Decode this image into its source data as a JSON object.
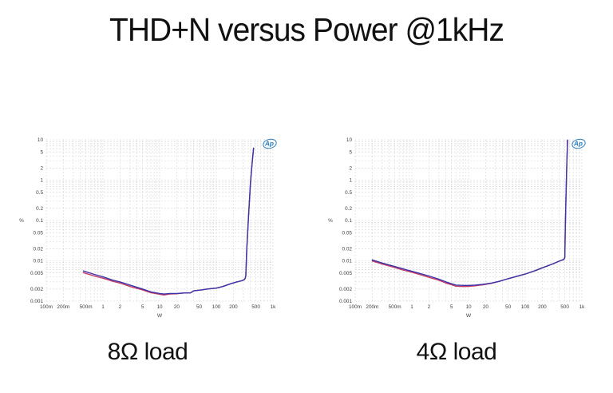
{
  "page": {
    "title": "THD+N versus Power @1kHz",
    "background": "#ffffff"
  },
  "style": {
    "grid_color": "#cdcdcd",
    "tick_color": "#3f3f3f",
    "logo_color": "#2a7fc0",
    "series_blue": "#3b32a8",
    "series_red": "#c43a64"
  },
  "chart_data": [
    {
      "type": "line",
      "caption": "8Ω load",
      "xlabel": "W",
      "ylabel": "%",
      "xscale": "log",
      "yscale": "log",
      "xlim": [
        0.1,
        1000
      ],
      "ylim": [
        0.001,
        10
      ],
      "grid": true,
      "watermark": "Ap",
      "x_ticks": [
        {
          "v": 0.1,
          "t": "100m"
        },
        {
          "v": 0.2,
          "t": "200m"
        },
        {
          "v": 0.5,
          "t": "500m"
        },
        {
          "v": 1,
          "t": "1"
        },
        {
          "v": 2,
          "t": "2"
        },
        {
          "v": 5,
          "t": "5"
        },
        {
          "v": 10,
          "t": "10"
        },
        {
          "v": 20,
          "t": "20"
        },
        {
          "v": 50,
          "t": "50"
        },
        {
          "v": 100,
          "t": "100"
        },
        {
          "v": 200,
          "t": "200"
        },
        {
          "v": 500,
          "t": "500"
        },
        {
          "v": 1000,
          "t": "1k"
        }
      ],
      "y_ticks": [
        {
          "v": 10,
          "t": "10"
        },
        {
          "v": 5,
          "t": "5"
        },
        {
          "v": 2,
          "t": "2"
        },
        {
          "v": 1,
          "t": "1"
        },
        {
          "v": 0.5,
          "t": "0.5"
        },
        {
          "v": 0.2,
          "t": "0.2"
        },
        {
          "v": 0.1,
          "t": "0.1"
        },
        {
          "v": 0.05,
          "t": "0.05"
        },
        {
          "v": 0.02,
          "t": "0.02"
        },
        {
          "v": 0.01,
          "t": "0.01"
        },
        {
          "v": 0.005,
          "t": "0.005"
        },
        {
          "v": 0.002,
          "t": "0.002"
        },
        {
          "v": 0.001,
          "t": "0.001"
        }
      ],
      "series": [
        {
          "name": "channel-2-red",
          "color": "#c43a64",
          "points": [
            [
              0.45,
              0.0051
            ],
            [
              0.7,
              0.0042
            ],
            [
              1,
              0.0037
            ],
            [
              1.5,
              0.0031
            ],
            [
              2,
              0.0028
            ],
            [
              3,
              0.0023
            ],
            [
              5,
              0.0019
            ],
            [
              7,
              0.00162
            ],
            [
              10,
              0.00148
            ],
            [
              12,
              0.00142
            ],
            [
              15,
              0.0015
            ],
            [
              20,
              0.00152
            ],
            [
              28,
              0.0016
            ],
            [
              35,
              0.0016
            ],
            [
              40,
              0.0018
            ],
            [
              55,
              0.0019
            ],
            [
              70,
              0.002
            ],
            [
              100,
              0.0021
            ],
            [
              130,
              0.0023
            ],
            [
              180,
              0.0027
            ],
            [
              230,
              0.003
            ],
            [
              280,
              0.0032
            ],
            [
              310,
              0.0034
            ],
            [
              325,
              0.0037
            ],
            [
              332,
              0.0044
            ],
            [
              345,
              0.02
            ],
            [
              370,
              0.12
            ],
            [
              400,
              0.8
            ],
            [
              430,
              2.8
            ],
            [
              455,
              6.2
            ]
          ]
        },
        {
          "name": "channel-1-blue",
          "color": "#3b32a8",
          "points": [
            [
              0.45,
              0.0056
            ],
            [
              0.7,
              0.0046
            ],
            [
              1,
              0.004
            ],
            [
              1.5,
              0.0033
            ],
            [
              2,
              0.003
            ],
            [
              3,
              0.0025
            ],
            [
              5,
              0.002
            ],
            [
              7,
              0.0017
            ],
            [
              10,
              0.00155
            ],
            [
              12,
              0.0015
            ],
            [
              15,
              0.00155
            ],
            [
              20,
              0.00155
            ],
            [
              28,
              0.0016
            ],
            [
              35,
              0.0016
            ],
            [
              40,
              0.0018
            ],
            [
              55,
              0.0019
            ],
            [
              70,
              0.002
            ],
            [
              100,
              0.0021
            ],
            [
              130,
              0.0023
            ],
            [
              180,
              0.0027
            ],
            [
              230,
              0.003
            ],
            [
              280,
              0.0032
            ],
            [
              310,
              0.0034
            ],
            [
              325,
              0.0037
            ],
            [
              332,
              0.0044
            ],
            [
              345,
              0.02
            ],
            [
              370,
              0.12
            ],
            [
              400,
              0.8
            ],
            [
              430,
              2.8
            ],
            [
              455,
              6.2
            ]
          ]
        }
      ]
    },
    {
      "type": "line",
      "caption": "4Ω load",
      "xlabel": "W",
      "ylabel": "%",
      "xscale": "log",
      "yscale": "log",
      "xlim": [
        0.1,
        1000
      ],
      "ylim": [
        0.001,
        10
      ],
      "grid": true,
      "watermark": "Ap",
      "x_ticks": [
        {
          "v": 0.1,
          "t": "100m"
        },
        {
          "v": 0.2,
          "t": "200m"
        },
        {
          "v": 0.5,
          "t": "500m"
        },
        {
          "v": 1,
          "t": "1"
        },
        {
          "v": 2,
          "t": "2"
        },
        {
          "v": 5,
          "t": "5"
        },
        {
          "v": 10,
          "t": "10"
        },
        {
          "v": 20,
          "t": "20"
        },
        {
          "v": 50,
          "t": "50"
        },
        {
          "v": 100,
          "t": "100"
        },
        {
          "v": 200,
          "t": "200"
        },
        {
          "v": 500,
          "t": "500"
        },
        {
          "v": 1000,
          "t": "1k"
        }
      ],
      "y_ticks": [
        {
          "v": 10,
          "t": "10"
        },
        {
          "v": 5,
          "t": "5"
        },
        {
          "v": 2,
          "t": "2"
        },
        {
          "v": 1,
          "t": "1"
        },
        {
          "v": 0.5,
          "t": "0.5"
        },
        {
          "v": 0.2,
          "t": "0.2"
        },
        {
          "v": 0.1,
          "t": "0.1"
        },
        {
          "v": 0.05,
          "t": "0.05"
        },
        {
          "v": 0.02,
          "t": "0.02"
        },
        {
          "v": 0.01,
          "t": "0.01"
        },
        {
          "v": 0.005,
          "t": "0.005"
        },
        {
          "v": 0.002,
          "t": "0.002"
        },
        {
          "v": 0.001,
          "t": "0.001"
        }
      ],
      "series": [
        {
          "name": "channel-2-red",
          "color": "#c43a64",
          "points": [
            [
              0.2,
              0.0099
            ],
            [
              0.3,
              0.0083
            ],
            [
              0.5,
              0.0068
            ],
            [
              0.7,
              0.0059
            ],
            [
              1,
              0.0052
            ],
            [
              1.5,
              0.0044
            ],
            [
              2,
              0.0039
            ],
            [
              3,
              0.0033
            ],
            [
              4,
              0.0028
            ],
            [
              5,
              0.00255
            ],
            [
              6,
              0.00235
            ],
            [
              8,
              0.0023
            ],
            [
              10,
              0.00232
            ],
            [
              13,
              0.0024
            ],
            [
              18,
              0.00255
            ],
            [
              25,
              0.00275
            ],
            [
              35,
              0.0031
            ],
            [
              50,
              0.0036
            ],
            [
              70,
              0.0041
            ],
            [
              100,
              0.0047
            ],
            [
              150,
              0.0057
            ],
            [
              200,
              0.0067
            ],
            [
              300,
              0.0083
            ],
            [
              400,
              0.0098
            ],
            [
              480,
              0.0108
            ],
            [
              500,
              0.012
            ],
            [
              510,
              0.06
            ],
            [
              525,
              0.4
            ],
            [
              540,
              2
            ],
            [
              560,
              9.8
            ]
          ]
        },
        {
          "name": "channel-1-blue",
          "color": "#3b32a8",
          "points": [
            [
              0.2,
              0.0105
            ],
            [
              0.3,
              0.0088
            ],
            [
              0.5,
              0.0072
            ],
            [
              0.7,
              0.0063
            ],
            [
              1,
              0.0055
            ],
            [
              1.5,
              0.0047
            ],
            [
              2,
              0.0042
            ],
            [
              3,
              0.0035
            ],
            [
              4,
              0.003
            ],
            [
              5,
              0.0027
            ],
            [
              6,
              0.0025
            ],
            [
              8,
              0.00245
            ],
            [
              10,
              0.00245
            ],
            [
              13,
              0.0025
            ],
            [
              18,
              0.0026
            ],
            [
              25,
              0.0028
            ],
            [
              35,
              0.0031
            ],
            [
              50,
              0.0036
            ],
            [
              70,
              0.0041
            ],
            [
              100,
              0.0047
            ],
            [
              150,
              0.0057
            ],
            [
              200,
              0.0067
            ],
            [
              300,
              0.0083
            ],
            [
              400,
              0.0098
            ],
            [
              480,
              0.0108
            ],
            [
              500,
              0.012
            ],
            [
              510,
              0.06
            ],
            [
              525,
              0.4
            ],
            [
              540,
              2
            ],
            [
              560,
              9.8
            ]
          ]
        }
      ]
    }
  ]
}
